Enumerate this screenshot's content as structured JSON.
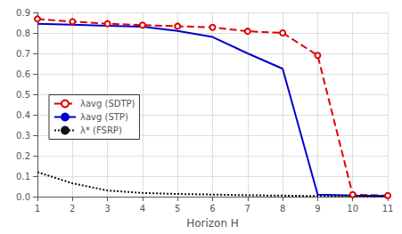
{
  "chart_data": {
    "type": "line",
    "xlabel": "Horizon H",
    "x": [
      1,
      2,
      3,
      4,
      5,
      6,
      7,
      8,
      9,
      10,
      11
    ],
    "series": [
      {
        "name": "λavg (SDTP)",
        "color": "#dd0000",
        "line_style": "dashed",
        "marker": "circle",
        "values": [
          0.868,
          0.855,
          0.845,
          0.838,
          0.833,
          0.827,
          0.808,
          0.8,
          0.69,
          0.01,
          0.005
        ]
      },
      {
        "name": "λavg (STP)",
        "color": "#0000cc",
        "line_style": "solid",
        "values": [
          0.845,
          0.84,
          0.835,
          0.83,
          0.81,
          0.78,
          0.7,
          0.625,
          0.01,
          0.005,
          0.003
        ]
      },
      {
        "name": "λ* (FSRP)",
        "color": "#111111",
        "line_style": "dotted",
        "values": [
          0.12,
          0.065,
          0.03,
          0.018,
          0.013,
          0.01,
          0.007,
          0.005,
          0.003,
          0.002,
          0.001
        ]
      }
    ],
    "xlim": [
      1,
      11
    ],
    "xticks": [
      1,
      2,
      3,
      4,
      5,
      6,
      7,
      8,
      9,
      10,
      11
    ],
    "ylim": [
      0,
      0.9
    ],
    "yticks": [
      {
        "value": 0.0,
        "label": "0.0"
      },
      0.1,
      0.2,
      0.3,
      0.4,
      0.5,
      0.6,
      0.7,
      0.8,
      0.9
    ],
    "grid": true,
    "legend": "left"
  }
}
